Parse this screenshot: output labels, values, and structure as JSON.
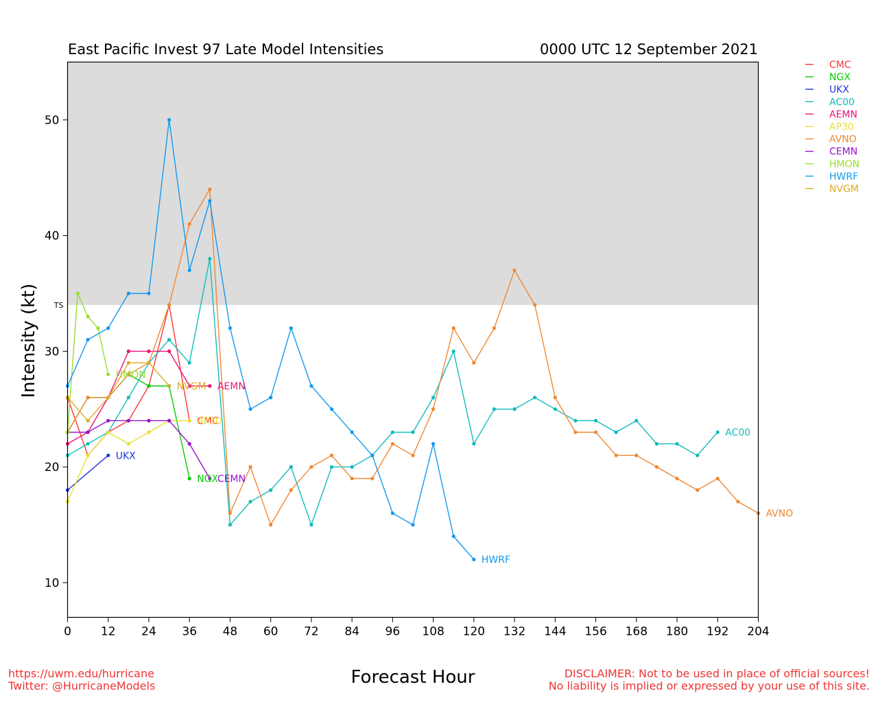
{
  "chart_data": {
    "type": "line",
    "title": "East Pacific Invest 97 Late Model Intensities",
    "subtitle": "0000 UTC 12 September 2021",
    "xlabel": "Forecast Hour",
    "ylabel": "Intensity (kt)",
    "xlim": [
      0,
      204
    ],
    "ylim": [
      7,
      55
    ],
    "xticks": [
      0,
      12,
      24,
      36,
      48,
      60,
      72,
      84,
      96,
      108,
      120,
      132,
      144,
      156,
      168,
      180,
      192,
      204
    ],
    "yticks": [
      10,
      20,
      30,
      40,
      50
    ],
    "ts_threshold": 34,
    "ts_label": "TS",
    "ts_band_color": "#dcdcdc",
    "legend_position": "right-outside",
    "series": [
      {
        "name": "CMC",
        "color": "#ff3333",
        "x": [
          0,
          6,
          12,
          18,
          24,
          30,
          36
        ],
        "y": [
          26,
          21,
          23,
          24,
          27,
          34,
          24
        ]
      },
      {
        "name": "NGX",
        "color": "#00cc00",
        "x": [
          0,
          6,
          12,
          18,
          24,
          30,
          36
        ],
        "y": [
          23,
          26,
          26,
          28,
          27,
          27,
          19
        ]
      },
      {
        "name": "UKX",
        "color": "#2233dd",
        "x": [
          0,
          12
        ],
        "y": [
          18,
          21
        ]
      },
      {
        "name": "AC00",
        "color": "#11bbbb",
        "x": [
          0,
          6,
          12,
          18,
          24,
          30,
          36,
          42,
          48,
          54,
          60,
          66,
          72,
          78,
          84,
          90,
          96,
          102,
          108,
          114,
          120,
          126,
          132,
          138,
          144,
          150,
          156,
          162,
          168,
          174,
          180,
          186,
          192
        ],
        "y": [
          21,
          22,
          23,
          26,
          29,
          31,
          29,
          38,
          15,
          17,
          18,
          20,
          15,
          20,
          20,
          21,
          23,
          23,
          26,
          30,
          22,
          25,
          25,
          26,
          25,
          24,
          24,
          23,
          24,
          22,
          22,
          21,
          23
        ]
      },
      {
        "name": "AEMN",
        "color": "#ee1177",
        "x": [
          0,
          6,
          12,
          18,
          24,
          30,
          36,
          42
        ],
        "y": [
          22,
          23,
          26,
          30,
          30,
          30,
          27,
          27
        ]
      },
      {
        "name": "AP30",
        "color": "#e8e030",
        "x": [
          0,
          6,
          12,
          18,
          24,
          30,
          36
        ],
        "y": [
          17,
          21,
          23,
          22,
          23,
          24,
          24
        ]
      },
      {
        "name": "AVNO",
        "color": "#ee8833",
        "x": [
          0,
          6,
          12,
          18,
          24,
          30,
          36,
          42,
          48,
          54,
          60,
          66,
          72,
          78,
          84,
          90,
          96,
          102,
          108,
          114,
          120,
          126,
          132,
          138,
          144,
          150,
          156,
          162,
          168,
          174,
          180,
          186,
          192,
          198,
          204
        ],
        "y": [
          23,
          26,
          26,
          28,
          29,
          34,
          41,
          44,
          16,
          20,
          15,
          18,
          20,
          21,
          19,
          19,
          22,
          21,
          25,
          32,
          29,
          32,
          37,
          34,
          26,
          23,
          23,
          21,
          21,
          20,
          19,
          18,
          19,
          17,
          16
        ]
      },
      {
        "name": "CEMN",
        "color": "#9911cc",
        "x": [
          0,
          6,
          12,
          18,
          24,
          30,
          36,
          42
        ],
        "y": [
          23,
          23,
          24,
          24,
          24,
          24,
          22,
          19
        ]
      },
      {
        "name": "HMON",
        "color": "#99dd33",
        "x": [
          0,
          3,
          6,
          9,
          12
        ],
        "y": [
          23,
          35,
          33,
          32,
          28
        ]
      },
      {
        "name": "HWRF",
        "color": "#1199ee",
        "x": [
          0,
          6,
          12,
          18,
          24,
          30,
          36,
          42,
          48,
          54,
          60,
          66,
          72,
          78,
          84,
          90,
          96,
          102,
          108,
          114,
          120
        ],
        "y": [
          27,
          31,
          32,
          35,
          35,
          50,
          37,
          43,
          32,
          25,
          26,
          32,
          27,
          25,
          23,
          21,
          16,
          15,
          22,
          14,
          12
        ]
      },
      {
        "name": "NVGM",
        "color": "#ddaa22",
        "x": [
          0,
          6,
          12,
          18,
          24,
          30
        ],
        "y": [
          26,
          24,
          26,
          29,
          29,
          27
        ]
      }
    ]
  },
  "footer": {
    "url": "https://uwm.edu/hurricane",
    "twitter": "Twitter: @HurricaneModels",
    "disclaimer1": "DISCLAIMER: Not to be used in place of official sources!",
    "disclaimer2": "No liability is implied or expressed by your use of this site."
  }
}
